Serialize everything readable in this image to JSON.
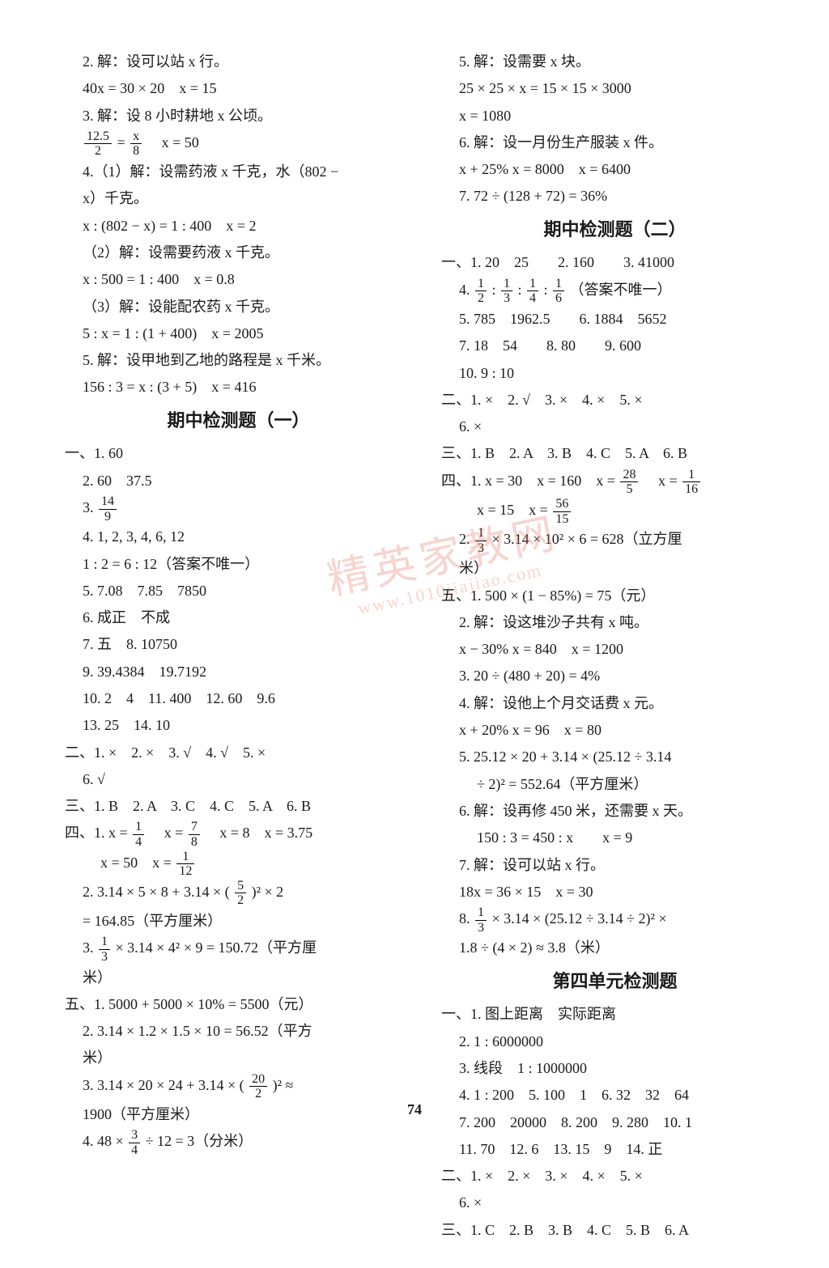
{
  "pageNumber": "74",
  "watermark": {
    "main": "精英家教网",
    "sub": "www.1010jiajiao.com"
  },
  "titles": {
    "midterm1": "期中检测题（一）",
    "midterm2": "期中检测题（二）",
    "unit4": "第四单元检测题"
  },
  "col1": {
    "l01": "2. 解：设可以站 x 行。",
    "l02": "40x = 30 × 20　x = 15",
    "l03": "3. 解：设 8 小时耕地 x 公顷。",
    "l04a_n": "12.5",
    "l04a_d": "2",
    "l04b_n": "x",
    "l04b_d": "8",
    "l04c": "　x = 50",
    "l05": "4.（1）解：设需药液 x 千克，水（802 −",
    "l06": "x）千克。",
    "l07": "x : (802 − x) = 1 : 400　x = 2",
    "l08": "（2）解：设需要药液 x 千克。",
    "l09": "x : 500 = 1 : 400　x = 0.8",
    "l10": "（3）解：设能配农药 x 千克。",
    "l11": "5 : x = 1 : (1 + 400)　x = 2005",
    "l12": "5. 解：设甲地到乙地的路程是 x 千米。",
    "l13": "156 : 3 = x : (3 + 5)　x = 416",
    "m1_01": "一、1. 60",
    "m1_02": "2. 60　37.5",
    "m1_03a": "3. ",
    "m1_03n": "14",
    "m1_03d": "9",
    "m1_04": "4. 1, 2, 3, 4, 6, 12",
    "m1_05": "1 : 2 = 6 : 12（答案不唯一）",
    "m1_06": "5. 7.08　7.85　7850",
    "m1_07": "6. 成正　不成",
    "m1_08": "7. 五　8. 10750",
    "m1_09": "9. 39.4384　19.7192",
    "m1_10": "10. 2　4　11. 400　12. 60　9.6",
    "m1_11": "13. 25　14. 10",
    "m1_12": "二、1. ×　2. ×　3. √　4. √　5. ×",
    "m1_13": "6. √",
    "m1_14": "三、1. B　2. A　3. C　4. C　5. A　6. B",
    "m1_15a": "四、1. x = ",
    "m1_15n1": "1",
    "m1_15d1": "4",
    "m1_15b": "　x = ",
    "m1_15n2": "7",
    "m1_15d2": "8",
    "m1_15c": "　x = 8　x = 3.75",
    "m1_16a": "x = 50　x = ",
    "m1_16n": "1",
    "m1_16d": "12",
    "m1_17a": "2. 3.14 × 5 × 8 + 3.14 × (",
    "m1_17n": "5",
    "m1_17d": "2",
    "m1_17b": ")² × 2",
    "m1_18": "= 164.85（平方厘米）",
    "m1_19a": "3. ",
    "m1_19n": "1",
    "m1_19d": "3",
    "m1_19b": " × 3.14 × 4² × 9 = 150.72（平方厘",
    "m1_20": "米）",
    "m1_21": "五、1. 5000 + 5000 × 10% = 5500（元）",
    "m1_22": "2. 3.14 × 1.2 × 1.5 × 10 = 56.52（平方",
    "m1_23": "米）",
    "m1_24a": "3. 3.14 × 20 × 24 + 3.14 × (",
    "m1_24n": "20",
    "m1_24d": "2",
    "m1_24b": ")² ≈",
    "m1_25": "1900（平方厘米）",
    "m1_26a": "4. 48 × ",
    "m1_26n": "3",
    "m1_26d": "4",
    "m1_26b": " ÷ 12 = 3（分米）"
  },
  "col2": {
    "l01": "5. 解：设需要 x 块。",
    "l02": "25 × 25 × x = 15 × 15 × 3000",
    "l03": "x = 1080",
    "l04": "6. 解：设一月份生产服装 x 件。",
    "l05": "x + 25% x = 8000　x = 6400",
    "l06": "7. 72 ÷ (128 + 72) = 36%",
    "m2_01": "一、1. 20　25　　2. 160　　3. 41000",
    "m2_02a": "4. ",
    "m2_02n1": "1",
    "m2_02d1": "2",
    "m2_02b": " : ",
    "m2_02n2": "1",
    "m2_02d2": "3",
    "m2_02c": " : ",
    "m2_02n3": "1",
    "m2_02d3": "4",
    "m2_02d": " : ",
    "m2_02n4": "1",
    "m2_02d4": "6",
    "m2_02e": "（答案不唯一）",
    "m2_03": "5. 785　1962.5　　6. 1884　5652",
    "m2_04": "7. 18　54　　8. 80　　9. 600",
    "m2_05": "10. 9 : 10",
    "m2_06": "二、1. ×　2. √　3. ×　4. ×　5. ×",
    "m2_07": "6. ×",
    "m2_08": "三、1. B　2. A　3. B　4. C　5. A　6. B",
    "m2_09a": "四、1. x = 30　x = 160　x = ",
    "m2_09n1": "28",
    "m2_09d1": "5",
    "m2_09b": "　x = ",
    "m2_09n2": "1",
    "m2_09d2": "16",
    "m2_10a": "x = 15　x = ",
    "m2_10n": "56",
    "m2_10d": "15",
    "m2_11a": "2. ",
    "m2_11n": "1",
    "m2_11d": "3",
    "m2_11b": " × 3.14 × 10² × 6 = 628（立方厘",
    "m2_12": "米）",
    "m2_13": "五、1. 500 × (1 − 85%) = 75（元）",
    "m2_14": "2. 解：设这堆沙子共有 x 吨。",
    "m2_15": "x − 30% x = 840　x = 1200",
    "m2_16": "3. 20 ÷ (480 + 20) = 4%",
    "m2_17": "4. 解：设他上个月交话费 x 元。",
    "m2_18": "x + 20% x = 96　x = 80",
    "m2_19": "5. 25.12 × 20 + 3.14 × (25.12 ÷ 3.14",
    "m2_20": "÷ 2)² = 552.64（平方厘米）",
    "m2_21": "6. 解：设再修 450 米，还需要 x 天。",
    "m2_22": "150 : 3 = 450 : x　　x = 9",
    "m2_23": "7. 解：设可以站 x 行。",
    "m2_24": "18x = 36 × 15　x = 30",
    "m2_25a": "8. ",
    "m2_25n": "1",
    "m2_25d": "3",
    "m2_25b": " × 3.14 × (25.12 ÷ 3.14 ÷ 2)² ×",
    "m2_26": "1.8 ÷ (4 × 2) ≈ 3.8（米）",
    "u4_01": "一、1. 图上距离　实际距离",
    "u4_02": "2. 1 : 6000000",
    "u4_03": "3. 线段　1 : 1000000",
    "u4_04": "4. 1 : 200　5. 100　1　6. 32　32　64",
    "u4_05": "7. 200　20000　8. 200　9. 280　10. 1",
    "u4_06": "11. 70　12. 6　13. 15　9　14. 正",
    "u4_07": "二、1. ×　2. ×　3. ×　4. ×　5. ×",
    "u4_08": "6. ×",
    "u4_09": "三、1. C　2. B　3. B　4. C　5. B　6. A"
  }
}
